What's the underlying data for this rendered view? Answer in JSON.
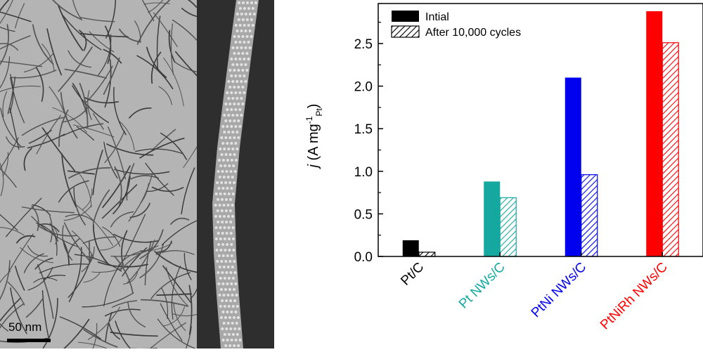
{
  "figure": {
    "scale_bar_label": "50 nm"
  },
  "chart_data": {
    "type": "bar",
    "categories": [
      "Pt/C",
      "Pt NWs/C",
      "PtNi NWs/C",
      "PtNiRh NWs/C"
    ],
    "category_colors": [
      "#000000",
      "#14a8a0",
      "#0000ee",
      "#ff0000"
    ],
    "series": [
      {
        "name": "Intial",
        "values": [
          0.19,
          0.88,
          2.1,
          2.88
        ],
        "fill": "solid"
      },
      {
        "name": "After 10,000 cycles",
        "values": [
          0.05,
          0.69,
          0.96,
          2.51
        ],
        "fill": "hatched"
      }
    ],
    "ylabel": "j (A mg-1 Pt)",
    "ylim": [
      0,
      2.97
    ],
    "yticks": [
      "0.0",
      "0.5",
      "1.0",
      "1.5",
      "2.0",
      "2.5"
    ],
    "grid": false,
    "legend_position": "top-left"
  }
}
